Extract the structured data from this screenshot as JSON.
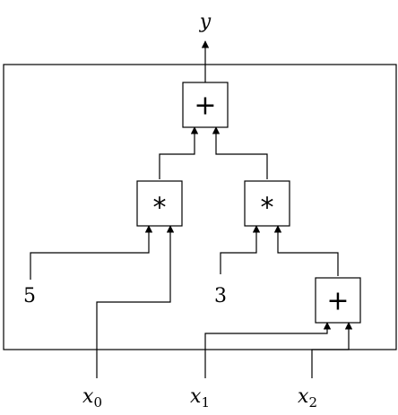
{
  "diagram": {
    "output": {
      "label": "y"
    },
    "inputs": [
      {
        "base": "x",
        "sub": "0"
      },
      {
        "base": "x",
        "sub": "1"
      },
      {
        "base": "x",
        "sub": "2"
      }
    ],
    "constants": {
      "left": "5",
      "right": "3"
    },
    "nodes": {
      "top_add": {
        "symbol": "+"
      },
      "left_mul": {
        "symbol": "*"
      },
      "right_mul": {
        "symbol": "*"
      },
      "bottom_add": {
        "symbol": "+"
      }
    }
  }
}
